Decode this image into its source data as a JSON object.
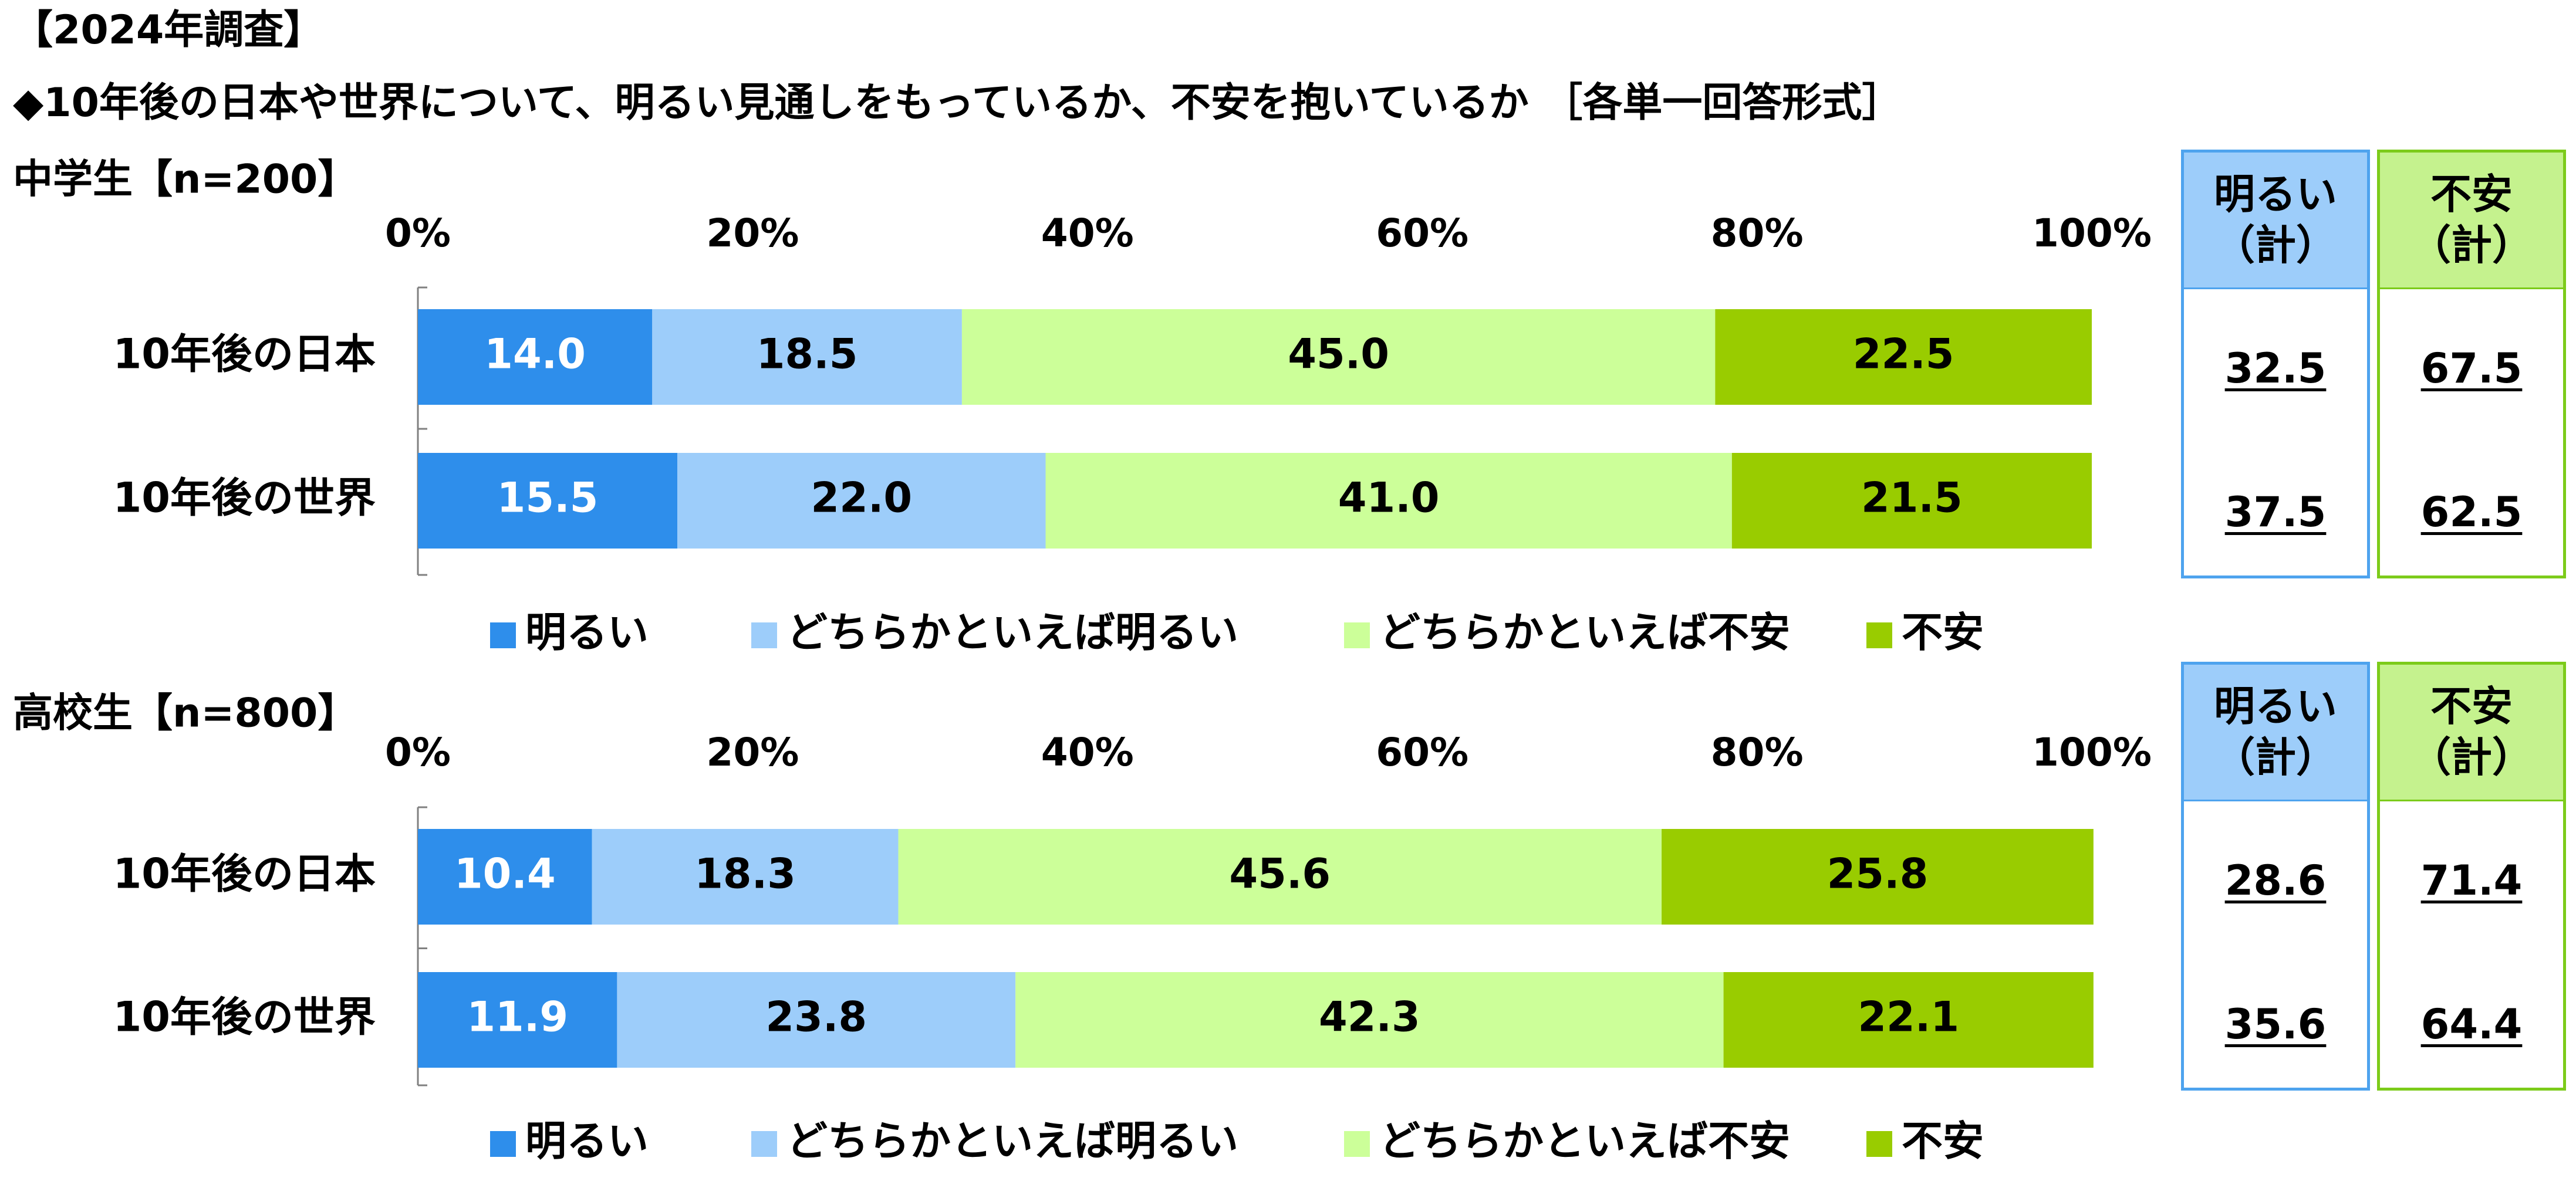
{
  "header": {
    "survey_label": "【2024年調査】",
    "question": "◆10年後の日本や世界について、明るい見通しをもっているか、不安を抱いているか ［各単一回答形式］"
  },
  "legend_items": [
    "明るい",
    "どちらかといえば明るい",
    "どちらかといえば不安",
    "不安"
  ],
  "summary_headers": {
    "bright": [
      "明るい",
      "（計）"
    ],
    "anxious": [
      "不安",
      "（計）"
    ]
  },
  "colors": {
    "bright": "#2E8EEB",
    "somewhat_bright": "#9DCDFA",
    "somewhat_anxious": "#CCFF99",
    "anxious": "#99CC00",
    "bright_box_border": "#4EA3EE",
    "anxious_box_border": "#7CCB1A"
  },
  "chart_data": [
    {
      "type": "bar",
      "orientation": "horizontal",
      "stacked": true,
      "title": "中学生【n=200】",
      "xlim": [
        0,
        100
      ],
      "x_ticks": [
        "0%",
        "20%",
        "40%",
        "60%",
        "80%",
        "100%"
      ],
      "categories": [
        "10年後の日本",
        "10年後の世界"
      ],
      "series": [
        {
          "name": "明るい",
          "values": [
            14.0,
            15.5
          ]
        },
        {
          "name": "どちらかといえば明るい",
          "values": [
            18.5,
            22.0
          ]
        },
        {
          "name": "どちらかといえば不安",
          "values": [
            45.0,
            41.0
          ]
        },
        {
          "name": "不安",
          "values": [
            22.5,
            21.5
          ]
        }
      ],
      "summary": {
        "bright_total": [
          "32.5",
          "37.5"
        ],
        "anxious_total": [
          "67.5",
          "62.5"
        ]
      },
      "legend": "bottom"
    },
    {
      "type": "bar",
      "orientation": "horizontal",
      "stacked": true,
      "title": "高校生【n=800】",
      "xlim": [
        0,
        100
      ],
      "x_ticks": [
        "0%",
        "20%",
        "40%",
        "60%",
        "80%",
        "100%"
      ],
      "categories": [
        "10年後の日本",
        "10年後の世界"
      ],
      "series": [
        {
          "name": "明るい",
          "values": [
            10.4,
            11.9
          ]
        },
        {
          "name": "どちらかといえば明るい",
          "values": [
            18.3,
            23.8
          ]
        },
        {
          "name": "どちらかといえば不安",
          "values": [
            45.6,
            42.3
          ]
        },
        {
          "name": "不安",
          "values": [
            25.8,
            22.1
          ]
        }
      ],
      "summary": {
        "bright_total": [
          "28.6",
          "35.6"
        ],
        "anxious_total": [
          "71.4",
          "64.4"
        ]
      },
      "legend": "bottom"
    }
  ]
}
